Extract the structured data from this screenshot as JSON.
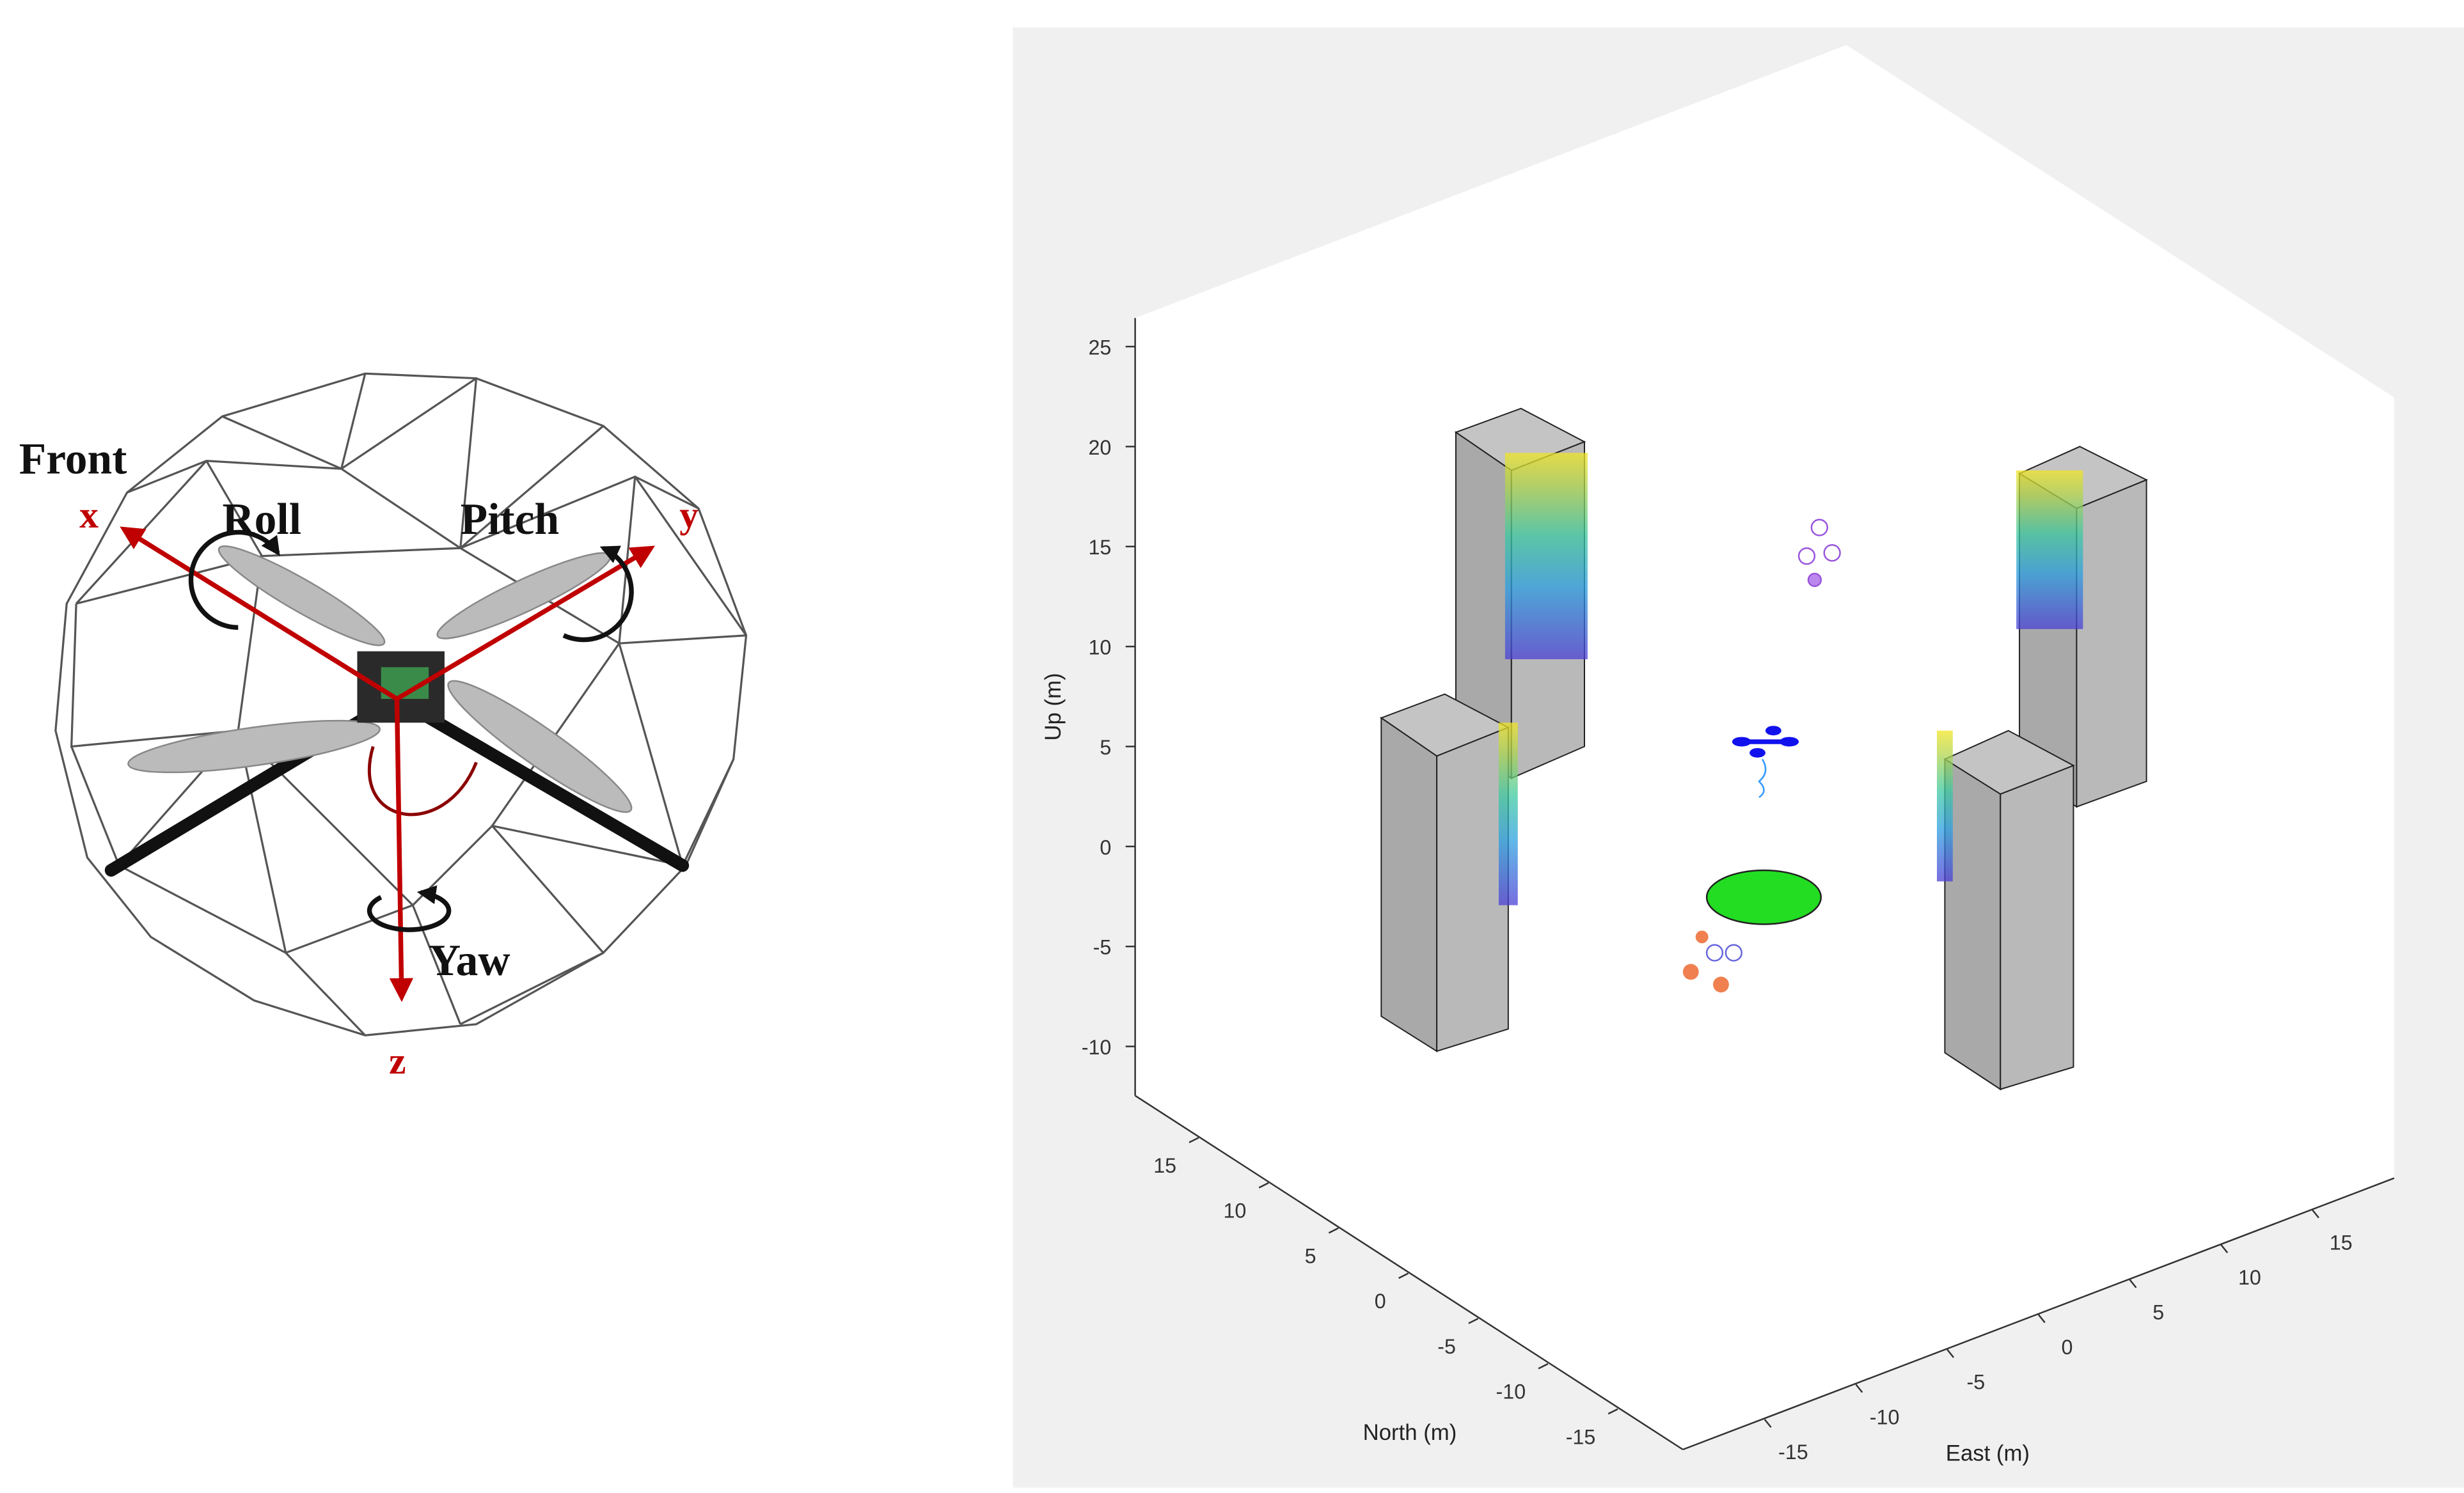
{
  "drone_diagram": {
    "front": "Front",
    "x_axis": "x",
    "y_axis": "y",
    "z_axis": "z",
    "roll": "Roll",
    "pitch": "Pitch",
    "yaw": "Yaw"
  },
  "plot3d": {
    "up_label": "Up (m)",
    "north_label": "North (m)",
    "east_label": "East (m)",
    "up_ticks": [
      25,
      20,
      15,
      10,
      5,
      0,
      -5,
      -10
    ],
    "north_ticks": [
      15,
      10,
      5,
      0,
      -5,
      -10,
      -15
    ],
    "east_ticks": [
      -15,
      -10,
      -5,
      0,
      5,
      10,
      15
    ]
  }
}
